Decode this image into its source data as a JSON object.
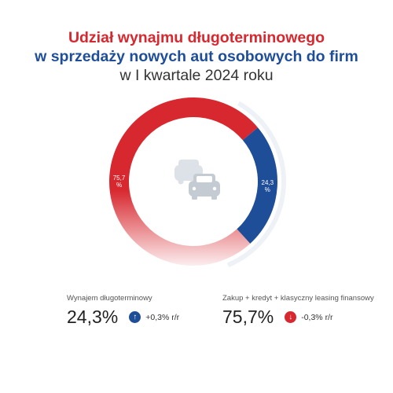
{
  "title": {
    "line1": "Udział wynajmu długoterminowego",
    "line2": "w sprzedaży nowych aut osobowych do firm",
    "line3": "w I kwartale 2024 roku"
  },
  "chart_data": {
    "type": "pie",
    "style": "donut",
    "slices": [
      {
        "label": "Wynajem długoterminowy",
        "value": 24.3,
        "display": "24,3\n%",
        "color": "#1f4e99"
      },
      {
        "label": "Zakup + kredyt + klasyczny leasing finansowy",
        "value": 75.7,
        "display": "75,7\n%",
        "color": "#d7282f"
      }
    ],
    "center_icon": "cars-icon"
  },
  "stats": [
    {
      "label": "Wynajem długoterminowy",
      "value": "24,3%",
      "change": "+0,3% r/r",
      "direction": "up",
      "icon": "arrow-up-icon",
      "color": "#1f4e99"
    },
    {
      "label": "Zakup + kredyt + klasyczny leasing finansowy",
      "value": "75,7%",
      "change": "-0,3% r/r",
      "direction": "down",
      "icon": "arrow-down-icon",
      "color": "#d7282f"
    }
  ]
}
